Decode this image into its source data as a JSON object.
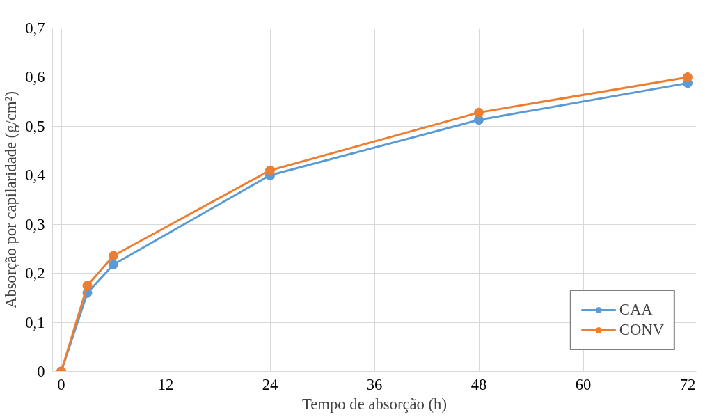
{
  "chart_data": {
    "type": "line",
    "xlabel": "Tempo de absorção (h)",
    "ylabel": "Absorção por capilaridade (g/cm²)",
    "x": [
      0,
      3,
      6,
      24,
      48,
      72
    ],
    "series": [
      {
        "name": "CAA",
        "color": "#5b9bd5",
        "values": [
          0,
          0.16,
          0.218,
          0.4,
          0.513,
          0.588
        ]
      },
      {
        "name": "CONV",
        "color": "#ed7d31",
        "values": [
          0,
          0.175,
          0.236,
          0.41,
          0.528,
          0.6
        ]
      }
    ],
    "xlim": [
      -1,
      73
    ],
    "xticks": [
      0,
      12,
      24,
      36,
      48,
      60,
      72
    ],
    "ylim": [
      0,
      0.7
    ],
    "yticks": [
      {
        "value": 0,
        "label": "0"
      },
      {
        "value": 0.1,
        "label": "0,1"
      },
      {
        "value": 0.2,
        "label": "0,2"
      },
      {
        "value": 0.3,
        "label": "0,3"
      },
      {
        "value": 0.4,
        "label": "0,4"
      },
      {
        "value": 0.5,
        "label": "0,5"
      },
      {
        "value": 0.6,
        "label": "0,6"
      },
      {
        "value": 0.7,
        "label": "0,7"
      }
    ],
    "grid": true,
    "legend": "bottom right",
    "marker": "circle",
    "line_style": "solid"
  }
}
